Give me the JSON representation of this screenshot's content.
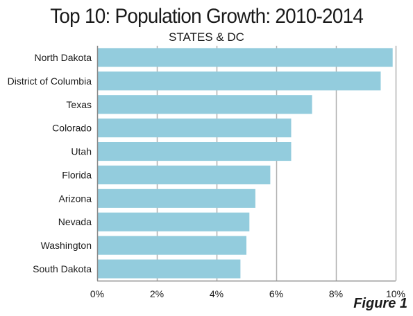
{
  "chart_data": {
    "type": "bar",
    "orientation": "horizontal",
    "title": "Top 10: Population Growth: 2010-2014",
    "subtitle": "STATES & DC",
    "categories": [
      "North Dakota",
      "District of Columbia",
      "Texas",
      "Colorado",
      "Utah",
      "Florida",
      "Arizona",
      "Nevada",
      "Washington",
      "South Dakota"
    ],
    "values": [
      9.9,
      9.5,
      7.2,
      6.5,
      6.5,
      5.8,
      5.3,
      5.1,
      5.0,
      4.8
    ],
    "xlim": [
      0,
      10
    ],
    "xticks": [
      0,
      2,
      4,
      6,
      8,
      10
    ],
    "xtick_labels": [
      "0%",
      "2%",
      "4%",
      "6%",
      "8%",
      "10%"
    ],
    "xlabel": "",
    "ylabel": "",
    "grid": "vertical",
    "legend": "none",
    "colors": {
      "bar": "#93ccdd",
      "grid": "#b0b0b0",
      "axis": "#888888"
    }
  },
  "figure_label": "Figure 1"
}
